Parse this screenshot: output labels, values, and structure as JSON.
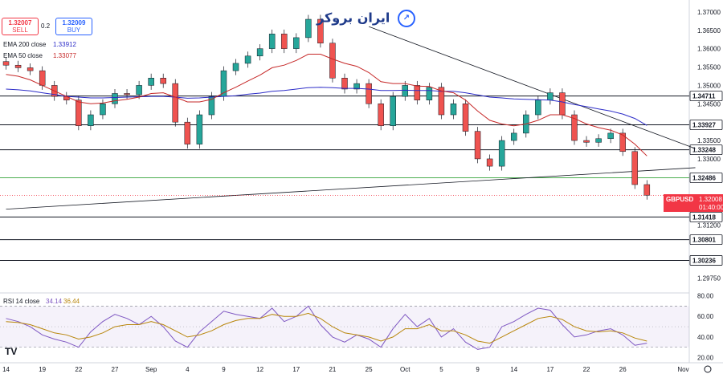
{
  "trade": {
    "sell_price": "1.32007",
    "sell_label": "SELL",
    "spread": "0.2",
    "buy_price": "1.32009",
    "buy_label": "BUY"
  },
  "logo_text": "ایران بروکر",
  "legend": [
    {
      "label": "EMA 200 close",
      "value": "1.33912",
      "color": "#2d2dc8"
    },
    {
      "label": "EMA 50 close",
      "value": "1.33077",
      "color": "#c62828"
    }
  ],
  "rsi_legend": {
    "label": "RSI 14 close",
    "value1": "34.14",
    "value2": "36.44",
    "color1": "#7e57c2",
    "color2": "#b8860b"
  },
  "symbol_box": {
    "symbol": "GBPUSD",
    "price": "1.32008",
    "countdown": "01:40:00",
    "color": "#f23645"
  },
  "tv_logo": "TV",
  "chart_data": [
    {
      "type": "candlestick",
      "title": "",
      "symbol": "GBPUSD",
      "ylim": [
        1.2935,
        1.3715
      ],
      "y_ticks": [
        "1.37000",
        "1.36500",
        "1.36000",
        "1.35500",
        "1.35000",
        "1.34500",
        "1.33500",
        "1.33000",
        "1.32500",
        "1.31200",
        "1.29750"
      ],
      "x_ticks": [
        "14",
        "19",
        "22",
        "27",
        "Sep",
        "4",
        "9",
        "12",
        "17",
        "21",
        "25",
        "Oct",
        "5",
        "9",
        "14",
        "17",
        "22",
        "26",
        "Nov"
      ],
      "x_tick_pos": [
        0,
        3,
        6,
        9,
        12,
        15,
        18,
        21,
        24,
        27,
        30,
        33,
        36,
        39,
        42,
        45,
        48,
        51,
        56
      ],
      "horizontal_levels": [
        {
          "value": "1.34711",
          "color": "#131722"
        },
        {
          "value": "1.33927",
          "color": "#131722"
        },
        {
          "value": "1.33248",
          "color": "#131722"
        },
        {
          "value": "1.32486",
          "color": "#4caf50"
        },
        {
          "value": "1.31418",
          "color": "#131722"
        },
        {
          "value": "1.30801",
          "color": "#131722"
        },
        {
          "value": "1.30236",
          "color": "#131722"
        }
      ],
      "trendlines": [
        {
          "x0": 0,
          "y0": 1.3163,
          "x1": 57,
          "y1": 1.3276
        },
        {
          "x0": 30,
          "y0": 1.366,
          "x1": 57,
          "y1": 1.3328
        }
      ],
      "current_price": 1.32008,
      "close": [
        1.3555,
        1.3548,
        1.354,
        1.35,
        1.347,
        1.346,
        1.339,
        1.342,
        1.345,
        1.3478,
        1.3475,
        1.35,
        1.352,
        1.3505,
        1.34,
        1.334,
        1.342,
        1.347,
        1.354,
        1.356,
        1.358,
        1.36,
        1.364,
        1.36,
        1.363,
        1.368,
        1.3615,
        1.352,
        1.349,
        1.3505,
        1.345,
        1.339,
        1.347,
        1.35,
        1.346,
        1.3495,
        1.342,
        1.345,
        1.3375,
        1.33,
        1.328,
        1.335,
        1.337,
        1.342,
        1.346,
        1.348,
        1.342,
        1.335,
        1.3345,
        1.3355,
        1.337,
        1.332,
        1.323,
        1.3201
      ],
      "ema200": [
        1.349,
        1.3488,
        1.3485,
        1.348,
        1.3475,
        1.347,
        1.3468,
        1.3466,
        1.3466,
        1.3467,
        1.3468,
        1.3469,
        1.347,
        1.347,
        1.3468,
        1.3465,
        1.3466,
        1.3468,
        1.347,
        1.3472,
        1.3476,
        1.3479,
        1.3484,
        1.3486,
        1.349,
        1.3494,
        1.3495,
        1.3494,
        1.3492,
        1.3492,
        1.349,
        1.3486,
        1.3486,
        1.3487,
        1.3486,
        1.3486,
        1.3484,
        1.3484,
        1.348,
        1.3474,
        1.3468,
        1.3466,
        1.3463,
        1.3462,
        1.3461,
        1.346,
        1.3455,
        1.3448,
        1.3442,
        1.3436,
        1.343,
        1.3422,
        1.341,
        1.3391
      ],
      "ema50": [
        1.353,
        1.3525,
        1.3515,
        1.35,
        1.3485,
        1.347,
        1.3455,
        1.345,
        1.3452,
        1.3458,
        1.3462,
        1.3468,
        1.3478,
        1.348,
        1.3468,
        1.3455,
        1.3455,
        1.3462,
        1.348,
        1.3495,
        1.3512,
        1.3528,
        1.3548,
        1.3555,
        1.3568,
        1.3585,
        1.3585,
        1.3572,
        1.356,
        1.3552,
        1.3535,
        1.351,
        1.3505,
        1.3505,
        1.3498,
        1.3497,
        1.3485,
        1.348,
        1.346,
        1.343,
        1.3405,
        1.3395,
        1.339,
        1.3395,
        1.3405,
        1.342,
        1.342,
        1.341,
        1.3395,
        1.3385,
        1.3378,
        1.3365,
        1.334,
        1.3308
      ]
    },
    {
      "type": "line",
      "title": "RSI 14 close",
      "ylim": [
        15,
        82
      ],
      "y_ticks": [
        "80.00",
        "60.00",
        "40.00",
        "20.00"
      ],
      "band": [
        30,
        70
      ],
      "series": [
        {
          "name": "RSI 14 close",
          "color": "#7e57c2",
          "values": [
            58,
            55,
            50,
            42,
            38,
            35,
            30,
            45,
            55,
            62,
            58,
            52,
            60,
            50,
            36,
            30,
            45,
            55,
            65,
            62,
            60,
            58,
            68,
            55,
            60,
            70,
            52,
            40,
            35,
            42,
            38,
            30,
            48,
            62,
            50,
            58,
            40,
            48,
            35,
            28,
            30,
            50,
            55,
            62,
            68,
            66,
            52,
            40,
            42,
            46,
            48,
            42,
            32,
            34
          ]
        },
        {
          "name": "",
          "color": "#b8860b",
          "values": [
            55,
            54,
            52,
            48,
            44,
            42,
            38,
            40,
            44,
            50,
            52,
            52,
            55,
            52,
            46,
            40,
            42,
            46,
            52,
            56,
            58,
            58,
            62,
            60,
            60,
            63,
            58,
            50,
            44,
            42,
            40,
            36,
            40,
            48,
            48,
            52,
            46,
            46,
            42,
            36,
            34,
            40,
            46,
            52,
            58,
            60,
            57,
            50,
            46,
            45,
            46,
            44,
            39,
            36
          ]
        }
      ]
    }
  ]
}
